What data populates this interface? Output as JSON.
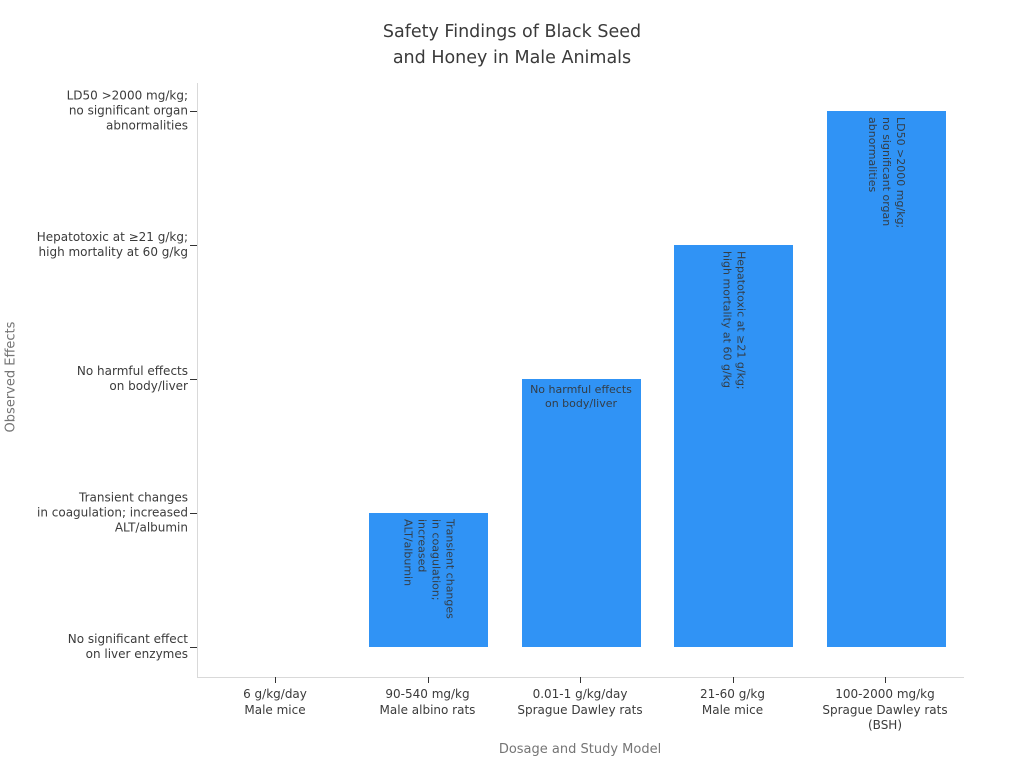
{
  "chart_data": {
    "type": "bar",
    "title": "Safety Findings of Black Seed\nand Honey in Male Animals",
    "xlabel": "Dosage and Study Model",
    "ylabel": "Observed Effects",
    "categories": [
      "6 g/kg/day\nMale mice",
      "90-540 mg/kg\nMale albino rats",
      "0.01-1 g/kg/day\nSprague Dawley rats",
      "21-60 g/kg\nMale mice",
      "100-2000 mg/kg\nSprague Dawley rats\n(BSH)"
    ],
    "values": [
      0,
      1,
      2,
      3,
      4
    ],
    "y_tick_labels": [
      "No significant effect\non liver enzymes",
      "Transient changes\nin coagulation; increased\nALT/albumin",
      "No harmful effects\non body/liver",
      "Hepatotoxic at ≥21 g/kg;\nhigh mortality at 60 g/kg",
      "LD50 >2000 mg/kg;\nno significant organ\nabnormalities"
    ],
    "bar_labels": [
      {
        "text": "",
        "orientation": "none"
      },
      {
        "text": "Transient changes\nin coagulation; increased\nALT/albumin",
        "orientation": "vertical"
      },
      {
        "text": "No harmful effects\non body/liver",
        "orientation": "horizontal"
      },
      {
        "text": "Hepatotoxic at ≥21 g/kg;\nhigh mortality at 60 g/kg",
        "orientation": "vertical"
      },
      {
        "text": "LD50 >2000 mg/kg;\nno significant organ\nabnormalities",
        "orientation": "vertical"
      }
    ],
    "ylim": [
      -0.22,
      4.21
    ],
    "grid": false,
    "legend": "none",
    "colors": {
      "bar_fill": "#3093f5",
      "bar_label_text": "#333d47",
      "tick_label_text": "#3b3b3b",
      "axis_label_text": "#757575",
      "title_text": "#3a3a3a",
      "spine": "#d9d9d9",
      "tick_mark": "#333333",
      "background": "#ffffff"
    }
  }
}
